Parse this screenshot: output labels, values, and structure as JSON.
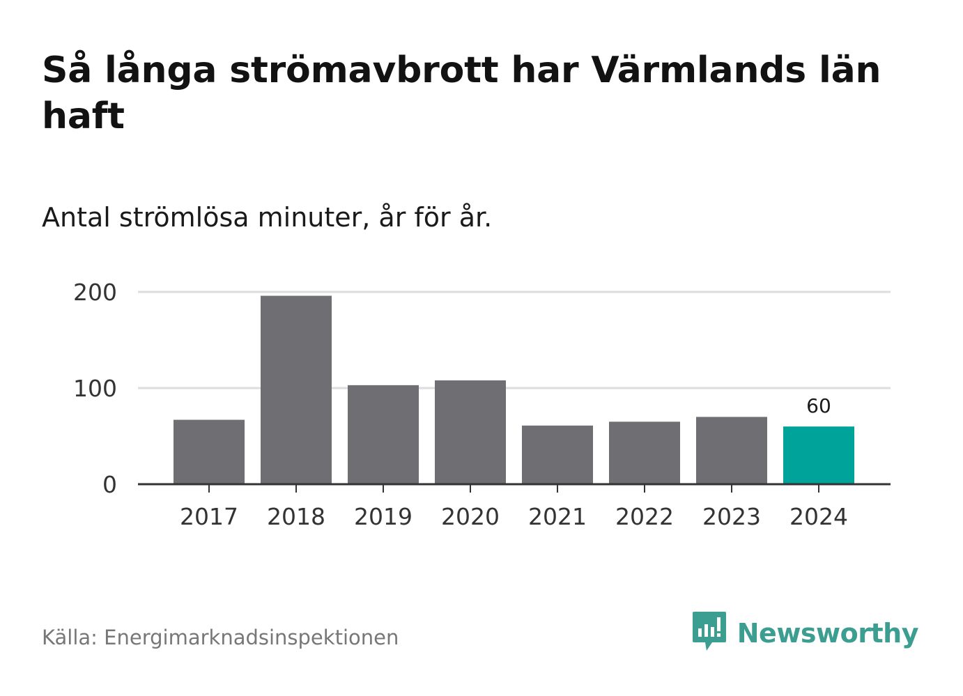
{
  "title": "Så långa strömavbrott har Värmlands län haft",
  "subtitle": "Antal strömlösa minuter, år för år.",
  "source": "Källa: Energimarknadsinspektionen",
  "brand": {
    "name": "Newsworthy",
    "icon": "newsworthy-logo-icon",
    "color": "#3c9d91"
  },
  "colors": {
    "bar": "#6f6e73",
    "highlight": "#00a399",
    "grid": "#dddddd",
    "axis": "#333333"
  },
  "chart_data": {
    "type": "bar",
    "title": "Så långa strömavbrott har Värmlands län haft",
    "subtitle": "Antal strömlösa minuter, år för år.",
    "xlabel": "",
    "ylabel": "",
    "categories": [
      "2017",
      "2018",
      "2019",
      "2020",
      "2021",
      "2022",
      "2023",
      "2024"
    ],
    "values": [
      67,
      196,
      103,
      108,
      61,
      65,
      70,
      60
    ],
    "highlight_index": 7,
    "data_labels": [
      {
        "index": 7,
        "text": "60"
      }
    ],
    "yticks": [
      {
        "value": 0,
        "label": "0"
      },
      {
        "value": 100,
        "label": "100"
      },
      {
        "value": 200,
        "label": "200"
      }
    ],
    "ylim": [
      0,
      200
    ],
    "grid": true,
    "legend": "none"
  }
}
